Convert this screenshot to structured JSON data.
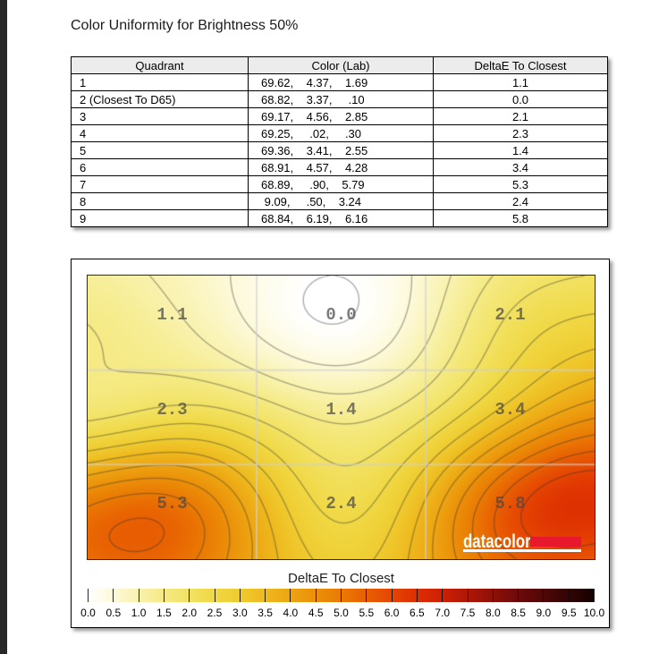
{
  "page": {
    "title": "Color Uniformity for Brightness 50%"
  },
  "table": {
    "headers": [
      "Quadrant",
      "Color (Lab)",
      "DeltaE To Closest"
    ],
    "rows": [
      {
        "quadrant": "1",
        "lab": "69.62,    4.37,    1.69",
        "delta": "1.1"
      },
      {
        "quadrant": "2 (Closest To D65)",
        "lab": "68.82,    3.37,     .10",
        "delta": "0.0"
      },
      {
        "quadrant": "3",
        "lab": "69.17,    4.56,    2.85",
        "delta": "2.1"
      },
      {
        "quadrant": "4",
        "lab": "69.25,     .02,     .30",
        "delta": "2.3"
      },
      {
        "quadrant": "5",
        "lab": "69.36,    3.41,    2.55",
        "delta": "1.4"
      },
      {
        "quadrant": "6",
        "lab": "68.91,    4.57,    4.28",
        "delta": "3.4"
      },
      {
        "quadrant": "7",
        "lab": "68.89,     .90,    5.79",
        "delta": "5.3"
      },
      {
        "quadrant": "8",
        "lab": " 9.09,     .50,    3.24",
        "delta": "2.4"
      },
      {
        "quadrant": "9",
        "lab": "68.84,    6.19,    6.16",
        "delta": "5.8"
      }
    ]
  },
  "chart_data": {
    "type": "heatmap",
    "title": "",
    "caption": "DeltaE To Closest",
    "rows": 3,
    "cols": 3,
    "values": [
      [
        1.1,
        0.0,
        2.1
      ],
      [
        2.3,
        1.4,
        3.4
      ],
      [
        5.3,
        2.4,
        5.8
      ]
    ],
    "cell_labels": [
      [
        "1.1",
        "0.0",
        "2.1"
      ],
      [
        "2.3",
        "1.4",
        "3.4"
      ],
      [
        "5.3",
        "2.4",
        "5.8"
      ]
    ],
    "contour_interval": 0.5,
    "grid": "on",
    "colorbar": {
      "min": 0.0,
      "max": 10.0,
      "tick_step": 0.5,
      "tick_labels": [
        "0.0",
        "0.5",
        "1.0",
        "1.5",
        "2.0",
        "2.5",
        "3.0",
        "3.5",
        "4.0",
        "4.5",
        "5.0",
        "5.5",
        "6.0",
        "6.5",
        "7.0",
        "7.5",
        "8.0",
        "8.5",
        "9.0",
        "9.5",
        "10.0"
      ],
      "colors": [
        "#ffffff",
        "#fdf9d9",
        "#f9f2ae",
        "#f5ea85",
        "#f2e263",
        "#f0d844",
        "#efcb30",
        "#eeb91e",
        "#eda512",
        "#eb9009",
        "#ea7a04",
        "#e86002",
        "#e54502",
        "#dd2e02",
        "#cc2004",
        "#b01706",
        "#8e1008",
        "#6e0a0a",
        "#500707",
        "#330404",
        "#140101"
      ]
    },
    "logo": {
      "text": "datacolor",
      "brand_red": "#e8192d"
    }
  }
}
